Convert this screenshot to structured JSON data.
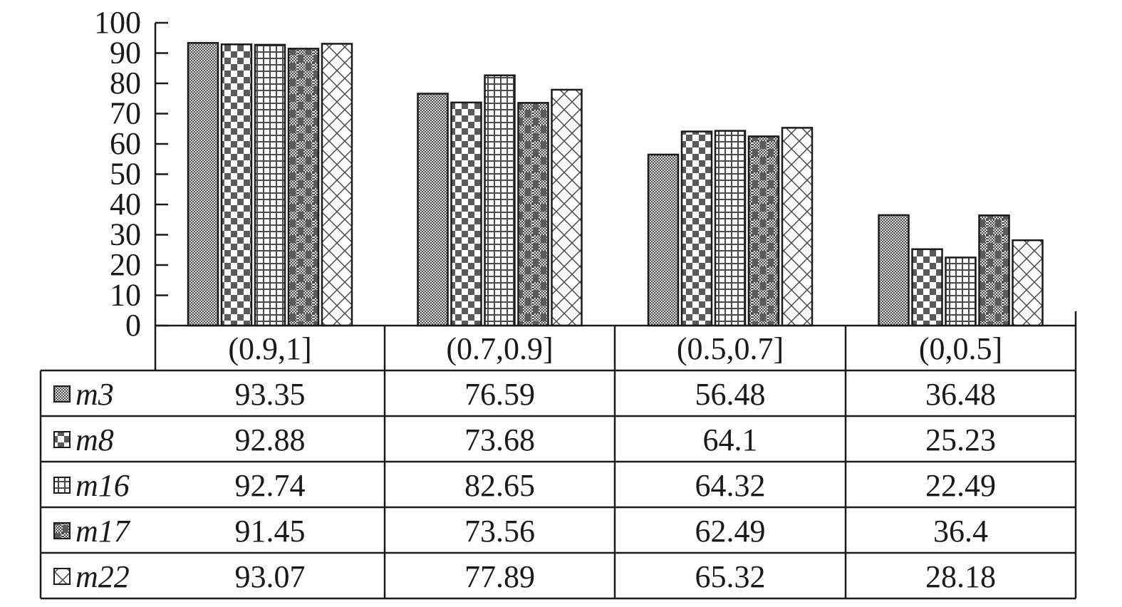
{
  "chart_data": {
    "type": "bar",
    "categories": [
      "(0.9,1]",
      "(0.7,0.9]",
      "(0.5,0.7]",
      "(0,0.5]"
    ],
    "series": [
      {
        "name": "m3",
        "pattern": "dots",
        "values": [
          93.35,
          76.59,
          56.48,
          36.48
        ]
      },
      {
        "name": "m8",
        "pattern": "checker",
        "values": [
          92.88,
          73.68,
          64.1,
          25.23
        ]
      },
      {
        "name": "m16",
        "pattern": "grid",
        "values": [
          92.74,
          82.65,
          64.32,
          22.49
        ]
      },
      {
        "name": "m17",
        "pattern": "mixed",
        "values": [
          91.45,
          73.56,
          62.49,
          36.4
        ]
      },
      {
        "name": "m22",
        "pattern": "cross",
        "values": [
          93.07,
          77.89,
          65.32,
          28.18
        ]
      }
    ],
    "value_labels": [
      [
        "93.35",
        "76.59",
        "56.48",
        "36.48"
      ],
      [
        "92.88",
        "73.68",
        "64.1",
        "25.23"
      ],
      [
        "92.74",
        "82.65",
        "64.32",
        "22.49"
      ],
      [
        "91.45",
        "73.56",
        "62.49",
        "36.4"
      ],
      [
        "93.07",
        "77.89",
        "65.32",
        "28.18"
      ]
    ],
    "y_ticks": [
      "0",
      "10",
      "20",
      "30",
      "40",
      "50",
      "60",
      "70",
      "80",
      "90",
      "100"
    ],
    "ylim": [
      0,
      100
    ],
    "title": "",
    "xlabel": "",
    "ylabel": "",
    "grid": false,
    "legend": "data-table-below",
    "colors": {
      "ink": "#1a1a1a",
      "background": "#ffffff",
      "fill_dark": "#5a5a5a"
    }
  }
}
